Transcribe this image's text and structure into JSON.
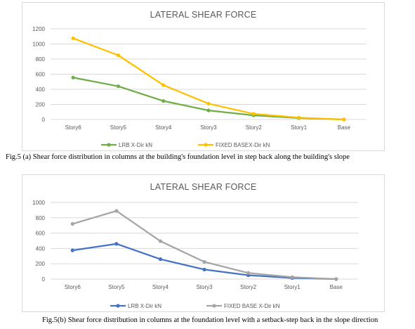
{
  "figures": [
    {
      "caption": "Fig.5 (a) Shear force distribution in columns at the building's foundation level in step back along the building's slope"
    },
    {
      "caption": "Fig.5(b) Shear force distribution in columns at the foundation level with a setback-step back in the slope direction"
    }
  ],
  "chart_data": [
    {
      "type": "line",
      "title": "LATERAL SHEAR FORCE",
      "categories": [
        "Story6",
        "Story5",
        "Story4",
        "Story3",
        "Story2",
        "Story1",
        "Base"
      ],
      "yticks": [
        "0",
        "200",
        "400",
        "600",
        "800",
        "1000",
        "1200"
      ],
      "ylim": [
        0,
        1200
      ],
      "grid": true,
      "legend_position": "bottom",
      "series": [
        {
          "name": "LRB X-Dir kN",
          "color": "#70ad47",
          "values": [
            555,
            440,
            245,
            120,
            55,
            20,
            0
          ]
        },
        {
          "name": "FIXED BASEX-Dir kN",
          "color": "#ffc000",
          "values": [
            1075,
            850,
            455,
            210,
            75,
            25,
            0
          ]
        }
      ]
    },
    {
      "type": "line",
      "title": "LATERAL SHEAR FORCE",
      "categories": [
        "Story6",
        "Story5",
        "Story4",
        "Story3",
        "Story2",
        "Story1",
        "Base"
      ],
      "yticks": [
        "0",
        "200",
        "400",
        "600",
        "800",
        "1000"
      ],
      "ylim": [
        0,
        1000
      ],
      "grid": true,
      "legend_position": "bottom",
      "series": [
        {
          "name": "LRB X-Dir kN",
          "color": "#4472c4",
          "values": [
            375,
            460,
            260,
            125,
            50,
            15,
            0
          ]
        },
        {
          "name": "FIXED BASE X-Dir kN",
          "color": "#a5a5a5",
          "values": [
            720,
            890,
            495,
            225,
            80,
            25,
            0
          ]
        }
      ]
    }
  ]
}
